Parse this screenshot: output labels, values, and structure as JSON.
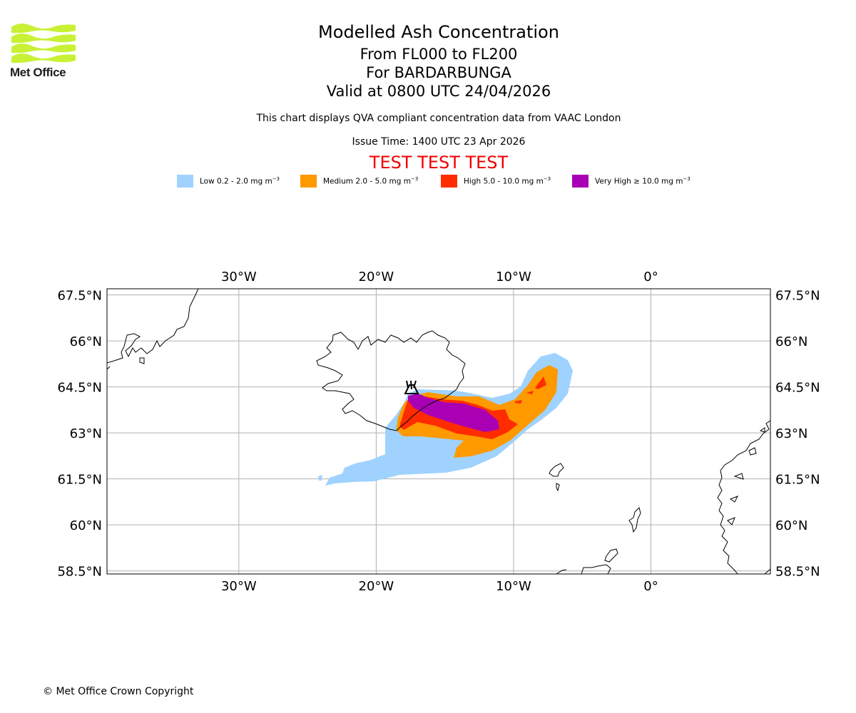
{
  "logo": {
    "text": "Met Office",
    "color": "#c8f135"
  },
  "header": {
    "title": "Modelled Ash Concentration",
    "levels": "From FL000 to FL200",
    "volcano": "For BARDARBUNGA",
    "valid": "Valid at 0800 UTC 24/04/2026",
    "description": "This chart displays QVA compliant concentration data from VAAC London",
    "issue_time": "Issue Time: 1400 UTC 23 Apr 2026",
    "test_banner": "TEST TEST TEST"
  },
  "legend": [
    {
      "label": "Low 0.2 - 2.0 mg m",
      "unit_exp": "−3",
      "color": "#9fd2ff"
    },
    {
      "label": "Medium 2.0 - 5.0 mg m",
      "unit_exp": "−3",
      "color": "#ff9900"
    },
    {
      "label": "High 5.0 - 10.0 mg m",
      "unit_exp": "−3",
      "color": "#ff2c00"
    },
    {
      "label": "Very High  ≥  10.0 mg m",
      "unit_exp": "−3",
      "color": "#a900b4"
    }
  ],
  "map": {
    "lon_range": [
      -39.6,
      8.7
    ],
    "lat_range": [
      58.4,
      67.7
    ],
    "meridians": [
      {
        "lon": -30,
        "label": "30°W"
      },
      {
        "lon": -20,
        "label": "20°W"
      },
      {
        "lon": -10,
        "label": "10°W"
      },
      {
        "lon": 0,
        "label": "0°"
      }
    ],
    "parallels": [
      {
        "lat": 67.5,
        "label": "67.5°N"
      },
      {
        "lat": 66,
        "label": "66°N"
      },
      {
        "lat": 64.5,
        "label": "64.5°N"
      },
      {
        "lat": 63,
        "label": "63°N"
      },
      {
        "lat": 61.5,
        "label": "61.5°N"
      },
      {
        "lat": 60,
        "label": "60°N"
      },
      {
        "lat": 58.5,
        "label": "58.5°N"
      }
    ],
    "volcano_marker": {
      "name": "BARDARBUNGA",
      "lon": -17.5,
      "lat": 64.64
    }
  },
  "copyright": "© Met Office Crown Copyright"
}
